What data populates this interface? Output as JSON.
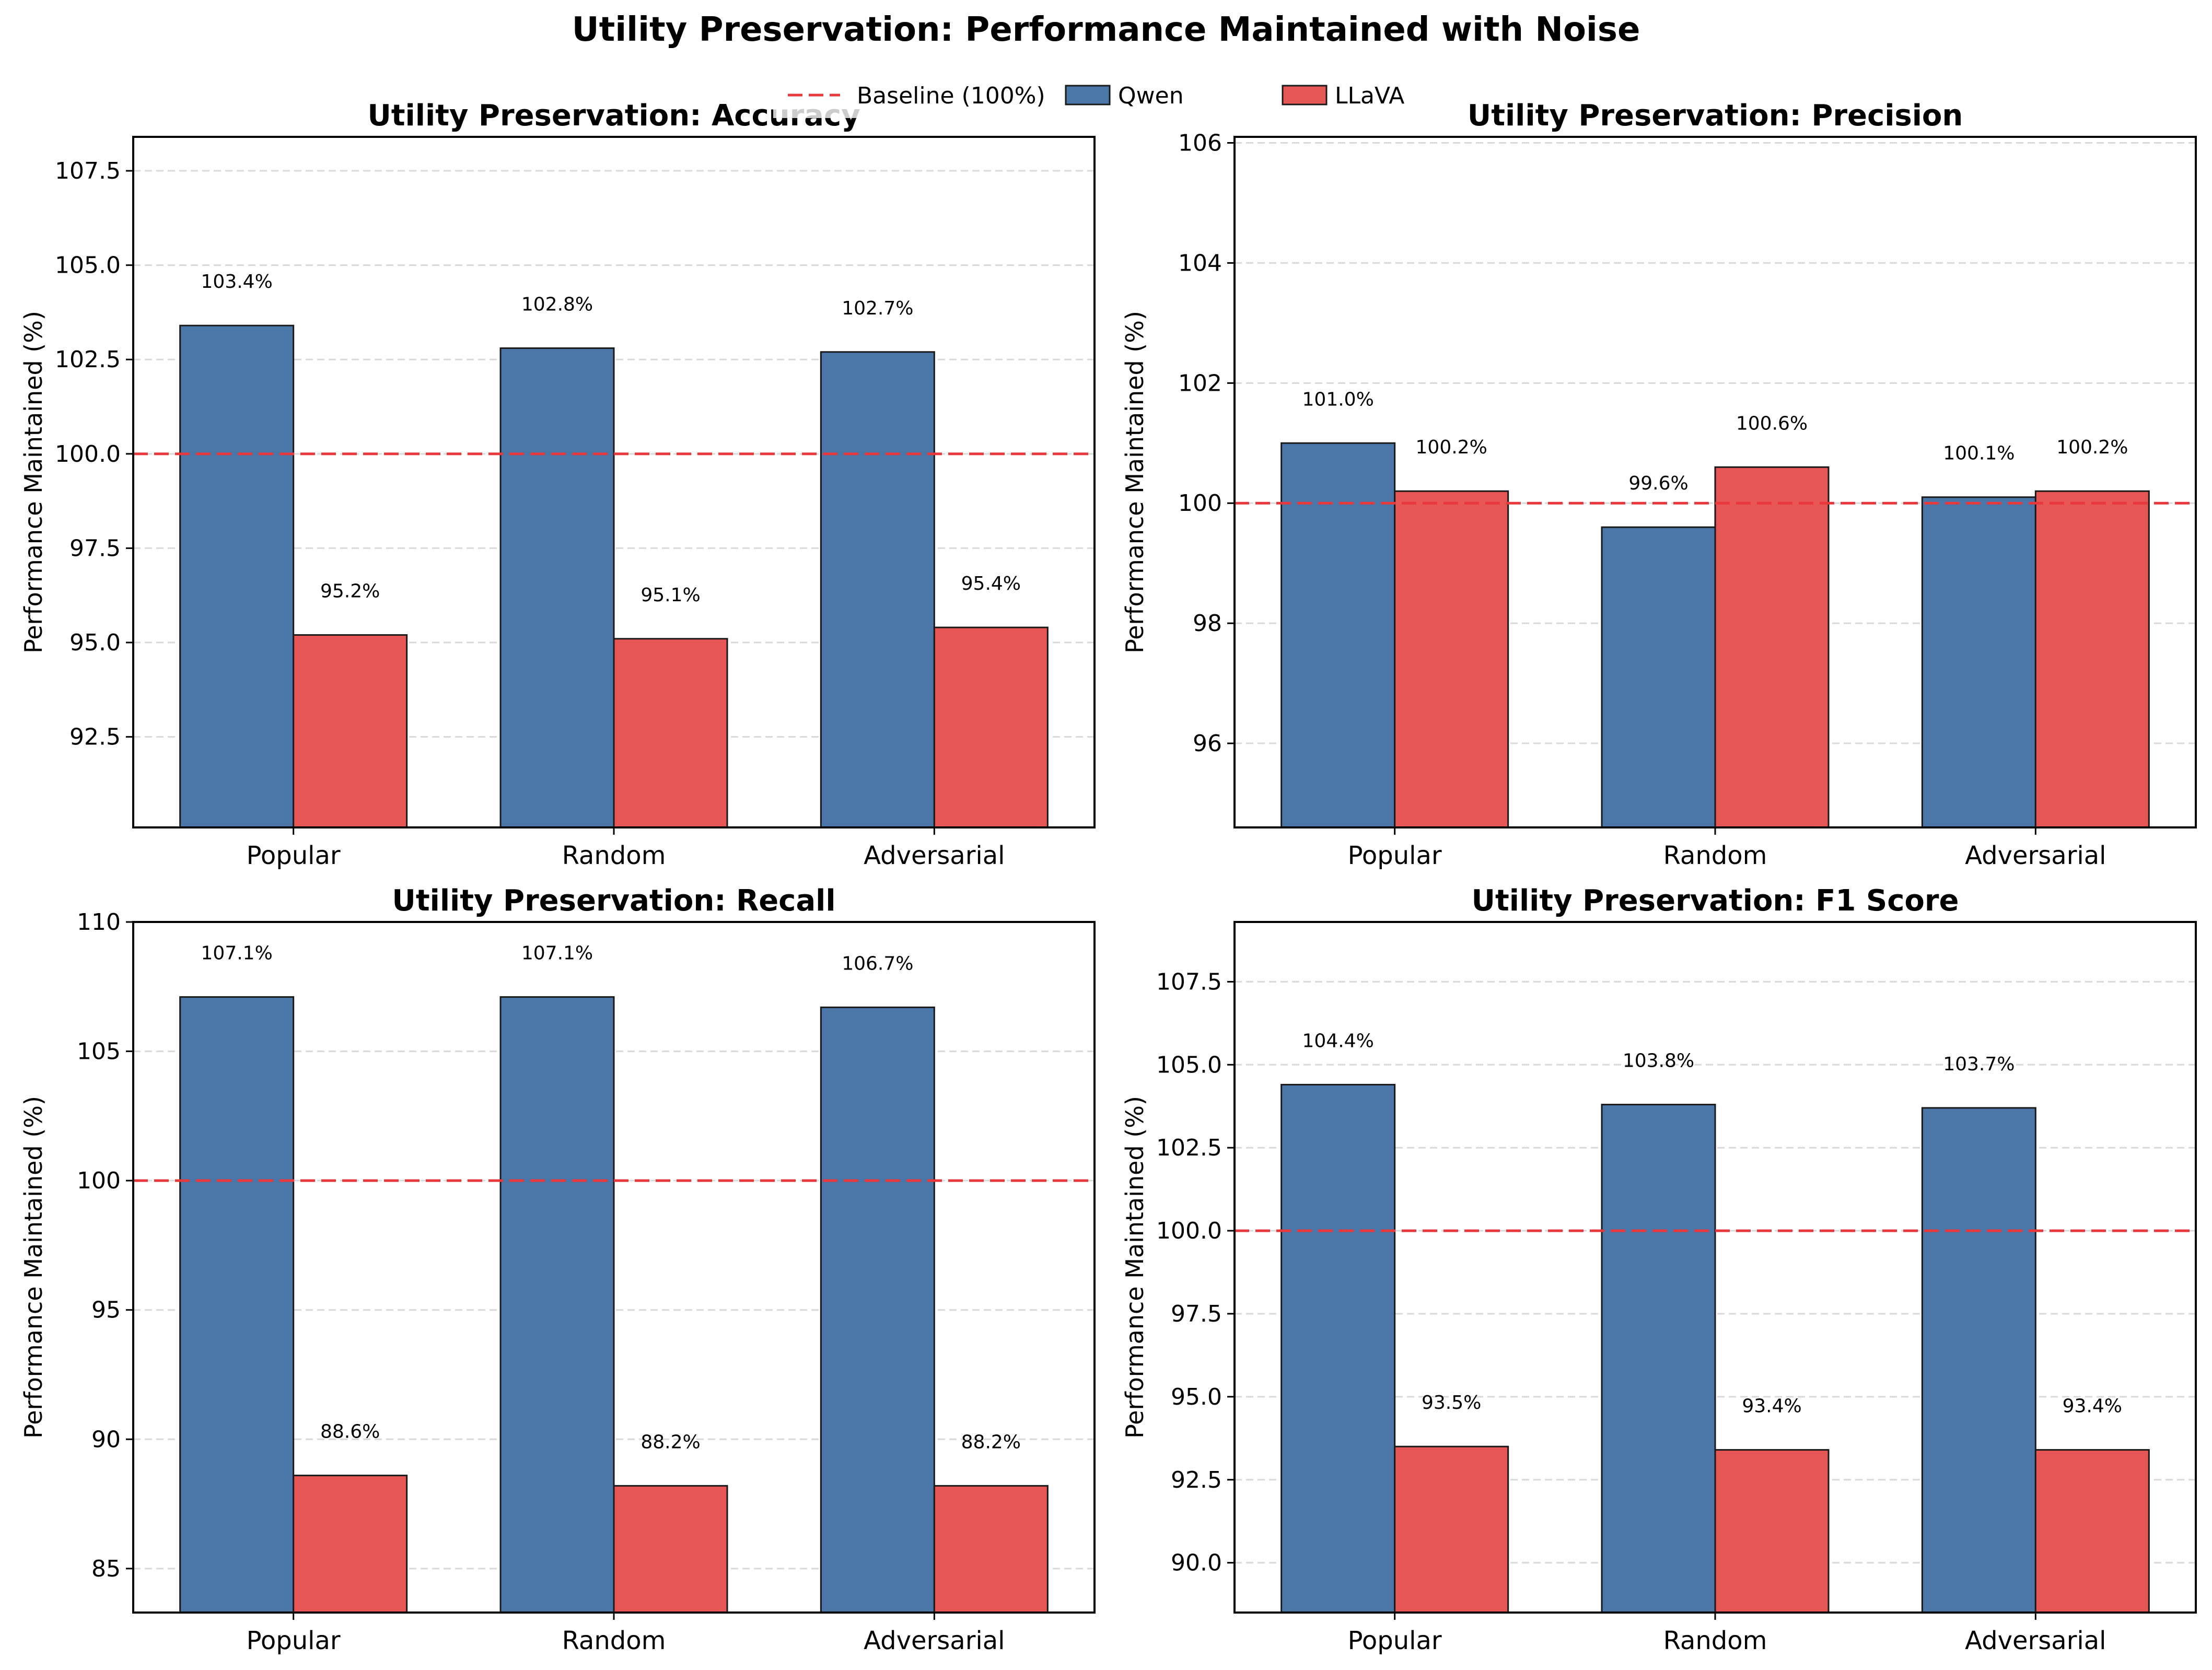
{
  "figure": {
    "title": "Utility Preservation: Performance Maintained with Noise"
  },
  "legend": {
    "placement": "top-center",
    "items": [
      {
        "label": "Baseline (100%)",
        "style": "dashed-line",
        "color": "#e8383b"
      },
      {
        "label": "Qwen",
        "style": "box",
        "color": "#4a76a8"
      },
      {
        "label": "LLaVA",
        "style": "box",
        "color": "#e55655"
      }
    ]
  },
  "colors": {
    "qwen": "#4a76a8",
    "llava": "#e55655",
    "baseline": "#e8383b",
    "grid": "#d9d9d9",
    "edge": "#1a1a1a"
  },
  "chart_data": [
    {
      "type": "bar",
      "title": "Utility Preservation: Accuracy",
      "ylabel": "Performance Maintained (%)",
      "categories": [
        "Popular",
        "Random",
        "Adversarial"
      ],
      "series": [
        {
          "name": "Qwen",
          "values": [
            103.4,
            102.8,
            102.7
          ],
          "labels": [
            "103.4%",
            "102.8%",
            "102.7%"
          ]
        },
        {
          "name": "LLaVA",
          "values": [
            95.2,
            95.1,
            95.4
          ],
          "labels": [
            "95.2%",
            "95.1%",
            "95.4%"
          ]
        }
      ],
      "baseline": 100,
      "ylim": [
        90.1,
        108.4
      ],
      "yticks": [
        92.5,
        95.0,
        97.5,
        100.0,
        102.5,
        105.0,
        107.5
      ],
      "ytick_labels": [
        "92.5",
        "95.0",
        "97.5",
        "100.0",
        "102.5",
        "105.0",
        "107.5"
      ],
      "grid": true
    },
    {
      "type": "bar",
      "title": "Utility Preservation: Precision",
      "ylabel": "Performance Maintained (%)",
      "categories": [
        "Popular",
        "Random",
        "Adversarial"
      ],
      "series": [
        {
          "name": "Qwen",
          "values": [
            101.0,
            99.6,
            100.1
          ],
          "labels": [
            "101.0%",
            "99.6%",
            "100.1%"
          ]
        },
        {
          "name": "LLaVA",
          "values": [
            100.2,
            100.6,
            100.2
          ],
          "labels": [
            "100.2%",
            "100.6%",
            "100.2%"
          ]
        }
      ],
      "baseline": 100,
      "ylim": [
        94.6,
        106.1
      ],
      "yticks": [
        96,
        98,
        100,
        102,
        104,
        106
      ],
      "ytick_labels": [
        "96",
        "98",
        "100",
        "102",
        "104",
        "106"
      ],
      "grid": true
    },
    {
      "type": "bar",
      "title": "Utility Preservation: Recall",
      "ylabel": "Performance Maintained (%)",
      "categories": [
        "Popular",
        "Random",
        "Adversarial"
      ],
      "series": [
        {
          "name": "Qwen",
          "values": [
            107.1,
            107.1,
            106.7
          ],
          "labels": [
            "107.1%",
            "107.1%",
            "106.7%"
          ]
        },
        {
          "name": "LLaVA",
          "values": [
            88.6,
            88.2,
            88.2
          ],
          "labels": [
            "88.6%",
            "88.2%",
            "88.2%"
          ]
        }
      ],
      "baseline": 100,
      "ylim": [
        83.3,
        110
      ],
      "yticks": [
        85,
        90,
        95,
        100,
        105,
        110
      ],
      "ytick_labels": [
        "85",
        "90",
        "95",
        "100",
        "105",
        "110"
      ],
      "grid": true
    },
    {
      "type": "bar",
      "title": "Utility Preservation: F1 Score",
      "ylabel": "Performance Maintained (%)",
      "categories": [
        "Popular",
        "Random",
        "Adversarial"
      ],
      "series": [
        {
          "name": "Qwen",
          "values": [
            104.4,
            103.8,
            103.7
          ],
          "labels": [
            "104.4%",
            "103.8%",
            "103.7%"
          ]
        },
        {
          "name": "LLaVA",
          "values": [
            93.5,
            93.4,
            93.4
          ],
          "labels": [
            "93.5%",
            "93.4%",
            "93.4%"
          ]
        }
      ],
      "baseline": 100,
      "ylim": [
        88.5,
        109.3
      ],
      "yticks": [
        90.0,
        92.5,
        95.0,
        97.5,
        100.0,
        102.5,
        105.0,
        107.5
      ],
      "ytick_labels": [
        "90.0",
        "92.5",
        "95.0",
        "97.5",
        "100.0",
        "102.5",
        "105.0",
        "107.5"
      ],
      "grid": true
    }
  ]
}
